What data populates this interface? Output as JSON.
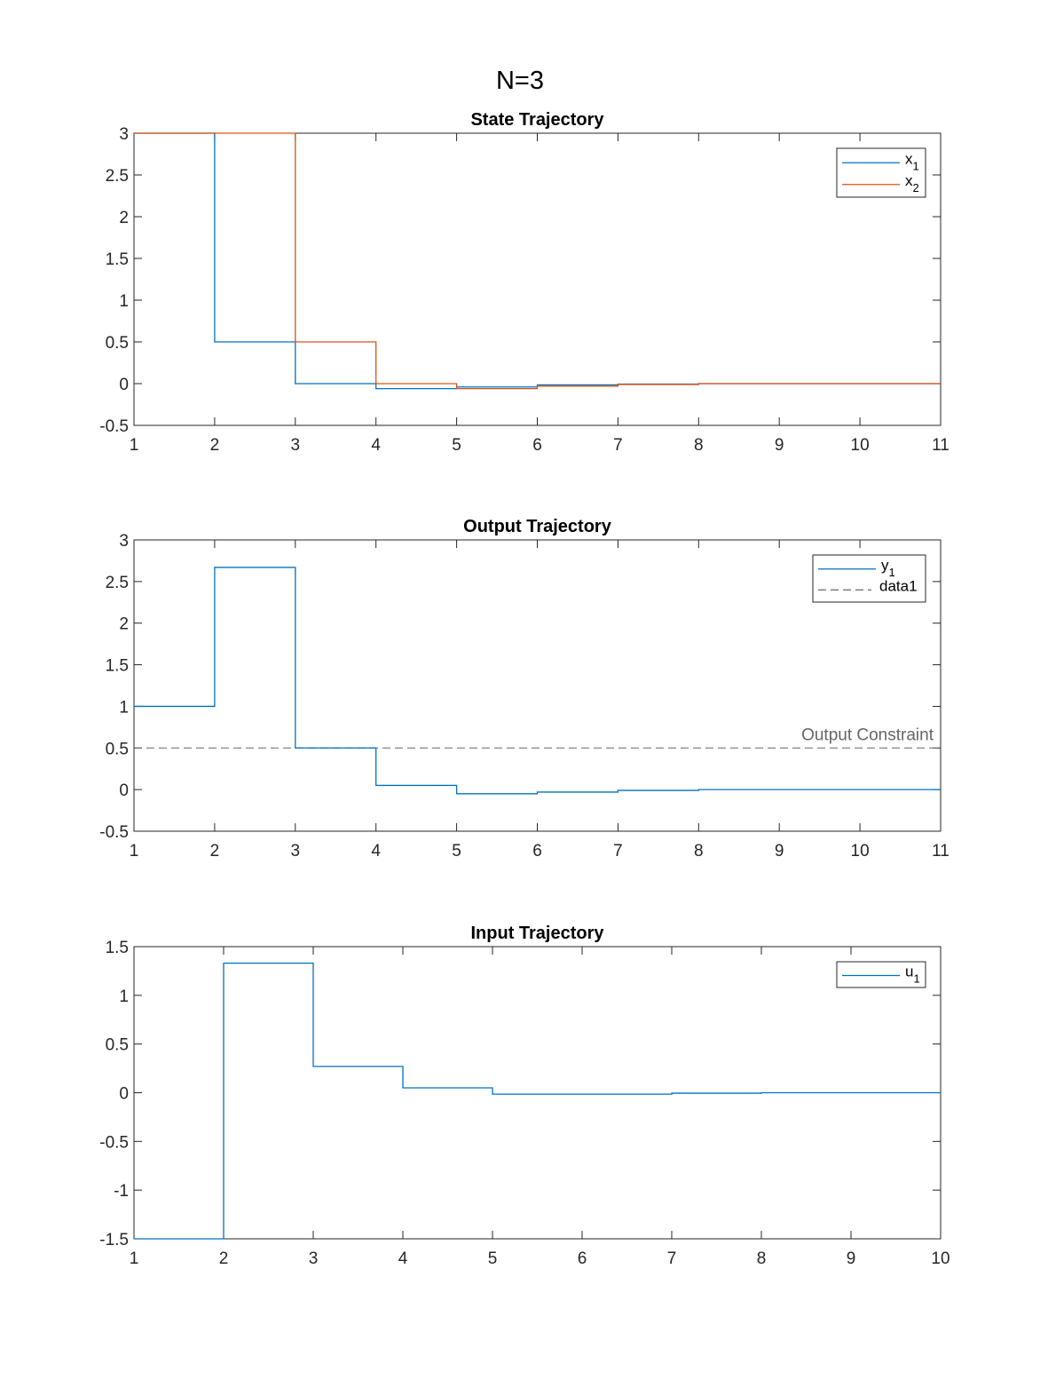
{
  "figure_title": "N=3",
  "chart_data": [
    {
      "type": "line",
      "step": true,
      "title": "State Trajectory",
      "xlabel": "",
      "ylabel": "",
      "xlim": [
        1,
        11
      ],
      "ylim": [
        -0.5,
        3
      ],
      "xticks": [
        "1",
        "2",
        "3",
        "4",
        "5",
        "6",
        "7",
        "8",
        "9",
        "10",
        "11"
      ],
      "yticks": [
        "-0.5",
        "0",
        "0.5",
        "1",
        "1.5",
        "2",
        "2.5",
        "3"
      ],
      "legend_position": "top-right",
      "legend": [
        {
          "base": "x",
          "sub": "1",
          "color": "#0072BD",
          "dashed": false
        },
        {
          "base": "x",
          "sub": "2",
          "color": "#D95319",
          "dashed": false
        }
      ],
      "series": [
        {
          "name": "x1",
          "color": "#0072BD",
          "x": [
            1,
            2,
            3,
            4,
            5,
            6,
            7,
            8,
            9,
            10,
            11
          ],
          "values": [
            3,
            0.5,
            0,
            -0.06,
            -0.04,
            -0.015,
            -0.005,
            0,
            0,
            0,
            0
          ]
        },
        {
          "name": "x2",
          "color": "#D95319",
          "x": [
            1,
            2,
            3,
            4,
            5,
            6,
            7,
            8,
            9,
            10,
            11
          ],
          "values": [
            3,
            3,
            0.5,
            0,
            -0.06,
            -0.03,
            -0.01,
            0,
            0,
            0,
            0
          ]
        }
      ],
      "grid": false
    },
    {
      "type": "line",
      "step": true,
      "title": "Output Trajectory",
      "xlabel": "",
      "ylabel": "",
      "xlim": [
        1,
        11
      ],
      "ylim": [
        -0.5,
        3
      ],
      "xticks": [
        "1",
        "2",
        "3",
        "4",
        "5",
        "6",
        "7",
        "8",
        "9",
        "10",
        "11"
      ],
      "yticks": [
        "-0.5",
        "0",
        "0.5",
        "1",
        "1.5",
        "2",
        "2.5",
        "3"
      ],
      "legend_position": "top-right",
      "legend": [
        {
          "base": "y",
          "sub": "1",
          "color": "#0072BD",
          "dashed": false
        },
        {
          "base": "data1",
          "sub": "",
          "color": "#666666",
          "dashed": true
        }
      ],
      "series": [
        {
          "name": "y1",
          "color": "#0072BD",
          "x": [
            1,
            2,
            3,
            4,
            5,
            6,
            7,
            8,
            9,
            10,
            11
          ],
          "values": [
            1,
            2.67,
            0.5,
            0.05,
            -0.05,
            -0.03,
            -0.01,
            0,
            0,
            0,
            0
          ]
        }
      ],
      "hline": {
        "y": 0.5,
        "color": "#666666",
        "label": "Output Constraint"
      },
      "grid": false
    },
    {
      "type": "line",
      "step": true,
      "title": "Input Trajectory",
      "xlabel": "",
      "ylabel": "",
      "xlim": [
        1,
        10
      ],
      "ylim": [
        -1.5,
        1.5
      ],
      "xticks": [
        "1",
        "2",
        "3",
        "4",
        "5",
        "6",
        "7",
        "8",
        "9",
        "10"
      ],
      "yticks": [
        "-1.5",
        "-1",
        "-0.5",
        "0",
        "0.5",
        "1",
        "1.5"
      ],
      "legend_position": "top-right",
      "legend": [
        {
          "base": "u",
          "sub": "1",
          "color": "#0072BD",
          "dashed": false
        }
      ],
      "series": [
        {
          "name": "u1",
          "color": "#0072BD",
          "x": [
            1,
            2,
            3,
            4,
            5,
            6,
            7,
            8,
            9,
            10
          ],
          "values": [
            -1.5,
            1.33,
            0.27,
            0.05,
            -0.015,
            -0.015,
            -0.005,
            0,
            0,
            0
          ]
        }
      ],
      "grid": false
    }
  ]
}
